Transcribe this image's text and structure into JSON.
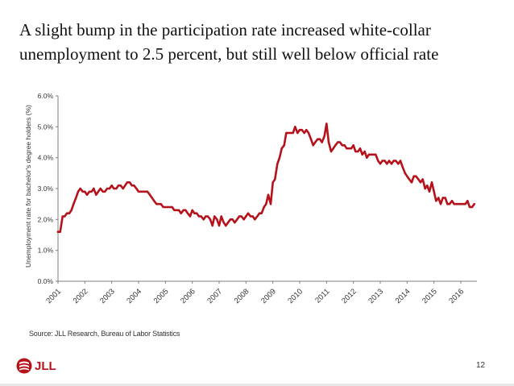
{
  "slide": {
    "title": "A slight bump in the participation rate increased white-collar unemployment to 2.5 percent, but still well below official rate",
    "source": "Source: JLL Research, Bureau of Labor Statistics",
    "page_number": "12",
    "logo_text": "JLL"
  },
  "colors": {
    "series": "#b5121b",
    "axis": "#7f7f7f",
    "text": "#333333"
  },
  "chart_data": {
    "type": "line",
    "title": "",
    "xlabel": "",
    "ylabel": "Unemployment rate for bachelor's degree holders (%)",
    "ylim": [
      0,
      6
    ],
    "xlim": [
      2001,
      2016.6
    ],
    "grid": false,
    "legend": "none",
    "y_ticks": [
      {
        "value": 0,
        "label": "0.0%"
      },
      {
        "value": 1,
        "label": "1.0%"
      },
      {
        "value": 2,
        "label": "2.0%"
      },
      {
        "value": 3,
        "label": "3.0%"
      },
      {
        "value": 4,
        "label": "4.0%"
      },
      {
        "value": 5,
        "label": "5.0%"
      },
      {
        "value": 6,
        "label": "6.0%"
      }
    ],
    "x_ticks": [
      {
        "value": 2001,
        "label": "2001"
      },
      {
        "value": 2002,
        "label": "2002"
      },
      {
        "value": 2003,
        "label": "2003"
      },
      {
        "value": 2004,
        "label": "2004"
      },
      {
        "value": 2005,
        "label": "2005"
      },
      {
        "value": 2006,
        "label": "2006"
      },
      {
        "value": 2007,
        "label": "2007"
      },
      {
        "value": 2008,
        "label": "2008"
      },
      {
        "value": 2009,
        "label": "2009"
      },
      {
        "value": 2010,
        "label": "2010"
      },
      {
        "value": 2011,
        "label": "2011"
      },
      {
        "value": 2012,
        "label": "2012"
      },
      {
        "value": 2013,
        "label": "2013"
      },
      {
        "value": 2014,
        "label": "2014"
      },
      {
        "value": 2015,
        "label": "2015"
      },
      {
        "value": 2016,
        "label": "2016"
      }
    ],
    "series": [
      {
        "name": "Unemployment rate for bachelor's degree holders",
        "x": [
          2001.0,
          2001.08,
          2001.17,
          2001.25,
          2001.33,
          2001.42,
          2001.5,
          2001.58,
          2001.67,
          2001.75,
          2001.83,
          2001.92,
          2002.0,
          2002.08,
          2002.17,
          2002.25,
          2002.33,
          2002.42,
          2002.5,
          2002.58,
          2002.67,
          2002.75,
          2002.83,
          2002.92,
          2003.0,
          2003.08,
          2003.17,
          2003.25,
          2003.33,
          2003.42,
          2003.5,
          2003.58,
          2003.67,
          2003.75,
          2003.83,
          2003.92,
          2004.0,
          2004.08,
          2004.17,
          2004.25,
          2004.33,
          2004.42,
          2004.5,
          2004.58,
          2004.67,
          2004.75,
          2004.83,
          2004.92,
          2005.0,
          2005.08,
          2005.17,
          2005.25,
          2005.33,
          2005.42,
          2005.5,
          2005.58,
          2005.67,
          2005.75,
          2005.83,
          2005.92,
          2006.0,
          2006.08,
          2006.17,
          2006.25,
          2006.33,
          2006.42,
          2006.5,
          2006.58,
          2006.67,
          2006.75,
          2006.83,
          2006.92,
          2007.0,
          2007.08,
          2007.17,
          2007.25,
          2007.33,
          2007.42,
          2007.5,
          2007.58,
          2007.67,
          2007.75,
          2007.83,
          2007.92,
          2008.0,
          2008.08,
          2008.17,
          2008.25,
          2008.33,
          2008.42,
          2008.5,
          2008.58,
          2008.67,
          2008.75,
          2008.83,
          2008.92,
          2009.0,
          2009.08,
          2009.17,
          2009.25,
          2009.33,
          2009.42,
          2009.5,
          2009.58,
          2009.67,
          2009.75,
          2009.83,
          2009.92,
          2010.0,
          2010.08,
          2010.17,
          2010.25,
          2010.33,
          2010.42,
          2010.5,
          2010.58,
          2010.67,
          2010.75,
          2010.83,
          2010.92,
          2011.0,
          2011.08,
          2011.17,
          2011.25,
          2011.33,
          2011.42,
          2011.5,
          2011.58,
          2011.67,
          2011.75,
          2011.83,
          2011.92,
          2012.0,
          2012.08,
          2012.17,
          2012.25,
          2012.33,
          2012.42,
          2012.5,
          2012.58,
          2012.67,
          2012.75,
          2012.83,
          2012.92,
          2013.0,
          2013.08,
          2013.17,
          2013.25,
          2013.33,
          2013.42,
          2013.5,
          2013.58,
          2013.67,
          2013.75,
          2013.83,
          2013.92,
          2014.0,
          2014.08,
          2014.17,
          2014.25,
          2014.33,
          2014.42,
          2014.5,
          2014.58,
          2014.67,
          2014.75,
          2014.83,
          2014.92,
          2015.0,
          2015.08,
          2015.17,
          2015.25,
          2015.33,
          2015.42,
          2015.5,
          2015.58,
          2015.67,
          2015.75,
          2015.83,
          2015.92,
          2016.0,
          2016.08,
          2016.17,
          2016.25,
          2016.33,
          2016.42,
          2016.5
        ],
        "values": [
          1.6,
          1.6,
          2.1,
          2.1,
          2.2,
          2.2,
          2.3,
          2.5,
          2.7,
          2.9,
          3.0,
          2.9,
          2.9,
          2.8,
          2.9,
          2.9,
          3.0,
          2.8,
          2.9,
          3.0,
          2.9,
          2.9,
          3.0,
          3.0,
          3.1,
          3.0,
          3.0,
          3.1,
          3.1,
          3.0,
          3.1,
          3.2,
          3.2,
          3.1,
          3.1,
          3.0,
          2.9,
          2.9,
          2.9,
          2.9,
          2.9,
          2.8,
          2.7,
          2.6,
          2.5,
          2.5,
          2.5,
          2.4,
          2.4,
          2.4,
          2.4,
          2.4,
          2.3,
          2.3,
          2.3,
          2.2,
          2.3,
          2.3,
          2.2,
          2.1,
          2.3,
          2.2,
          2.2,
          2.1,
          2.1,
          2.0,
          2.1,
          2.1,
          2.0,
          1.8,
          2.1,
          2.0,
          1.8,
          2.1,
          1.9,
          1.8,
          1.9,
          2.0,
          2.0,
          1.9,
          2.0,
          2.1,
          2.1,
          2.0,
          2.1,
          2.2,
          2.1,
          2.1,
          2.0,
          2.1,
          2.2,
          2.2,
          2.4,
          2.5,
          2.8,
          2.5,
          3.2,
          3.3,
          3.8,
          4.0,
          4.3,
          4.4,
          4.8,
          4.8,
          4.8,
          4.8,
          5.0,
          4.8,
          4.9,
          4.9,
          4.8,
          4.9,
          4.8,
          4.6,
          4.4,
          4.5,
          4.6,
          4.6,
          4.5,
          4.7,
          5.1,
          4.5,
          4.2,
          4.3,
          4.4,
          4.5,
          4.5,
          4.4,
          4.4,
          4.3,
          4.3,
          4.3,
          4.4,
          4.2,
          4.2,
          4.3,
          4.1,
          4.2,
          4.0,
          4.1,
          4.1,
          4.1,
          4.1,
          3.9,
          3.8,
          3.9,
          3.9,
          3.8,
          3.9,
          3.8,
          3.9,
          3.9,
          3.8,
          3.9,
          3.7,
          3.5,
          3.4,
          3.3,
          3.2,
          3.4,
          3.4,
          3.3,
          3.2,
          3.3,
          3.0,
          3.1,
          2.9,
          3.2,
          2.9,
          2.6,
          2.7,
          2.5,
          2.7,
          2.7,
          2.5,
          2.5,
          2.6,
          2.5,
          2.5,
          2.5,
          2.5,
          2.5,
          2.5,
          2.6,
          2.4,
          2.4,
          2.5
        ]
      }
    ]
  }
}
